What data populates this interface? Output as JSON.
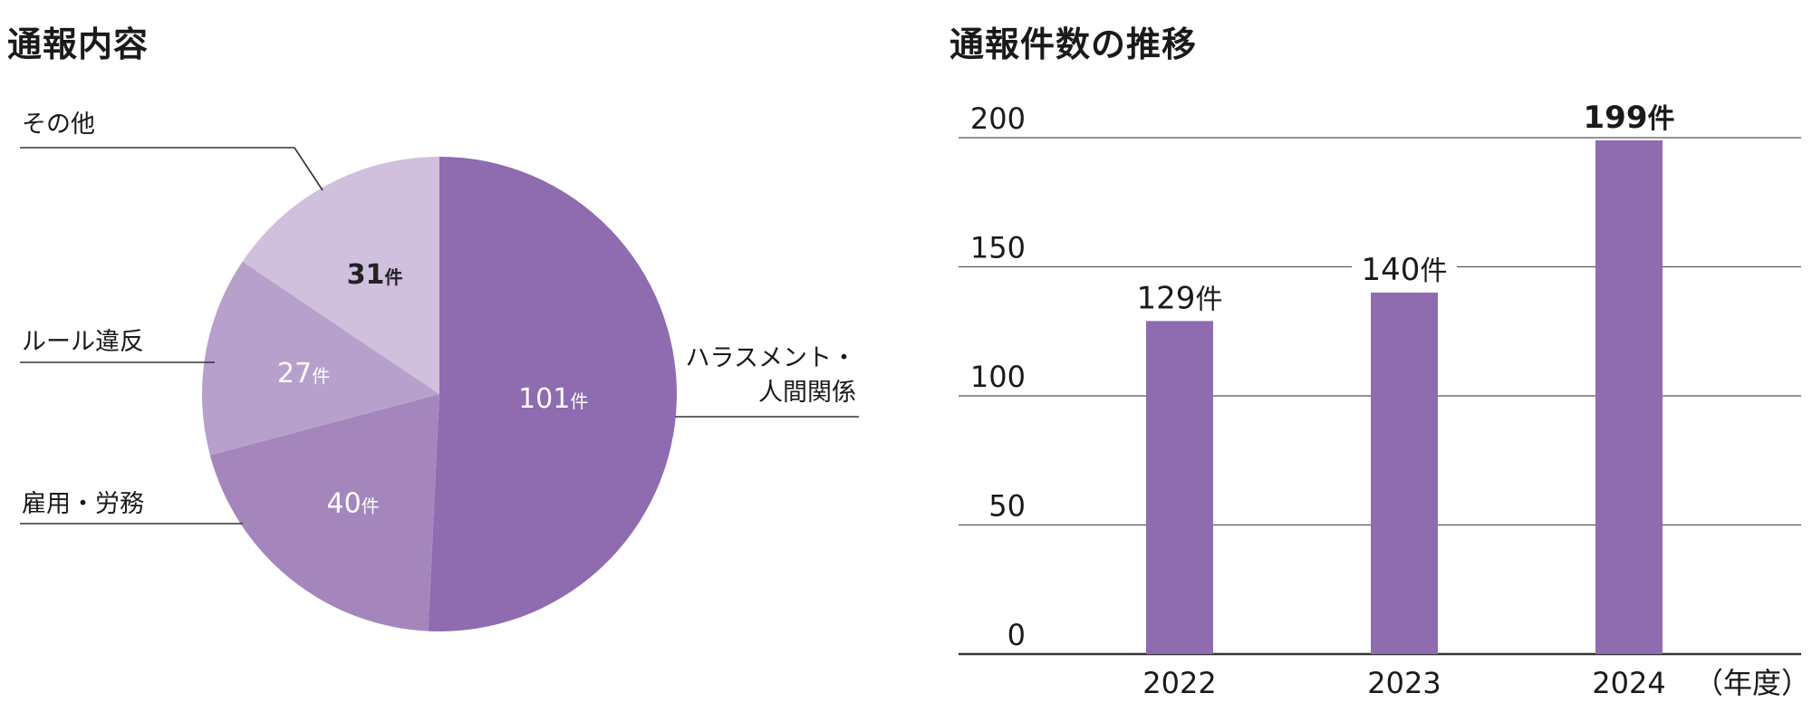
{
  "pie": {
    "title": "通報内容",
    "unit": "件",
    "colors": {
      "harassment": "#8f6bb0",
      "employment": "#a486bd",
      "rule": "#b7a0cc",
      "other": "#d0bfdd"
    }
  },
  "bar": {
    "title": "通報件数の推移",
    "unit": "件",
    "axis_suffix": "（年度）",
    "color": "#8f6bb0"
  },
  "chart_data": [
    {
      "type": "pie",
      "title": "通報内容",
      "slices": [
        {
          "label": [
            "ハラスメント・",
            "人間関係"
          ],
          "value": 101,
          "value_label": "101",
          "color": "#8f6bb0"
        },
        {
          "label": [
            "雇用・労務"
          ],
          "value": 40,
          "value_label": "40",
          "color": "#a486bd"
        },
        {
          "label": [
            "ルール違反"
          ],
          "value": 27,
          "value_label": "27",
          "color": "#b7a0cc"
        },
        {
          "label": [
            "その他"
          ],
          "value": 31,
          "value_label": "31",
          "color": "#d0bfdd"
        }
      ]
    },
    {
      "type": "bar",
      "title": "通報件数の推移",
      "categories": [
        "2022",
        "2023",
        "2024"
      ],
      "values": [
        129,
        140,
        199
      ],
      "value_labels": [
        "129",
        "140",
        "199"
      ],
      "ylim": [
        0,
        200
      ],
      "yticks": [
        0,
        50,
        100,
        150,
        200
      ],
      "ytick_labels": [
        "0",
        "50",
        "100",
        "150",
        "200"
      ],
      "xlabel": "（年度）",
      "grid": true
    }
  ]
}
